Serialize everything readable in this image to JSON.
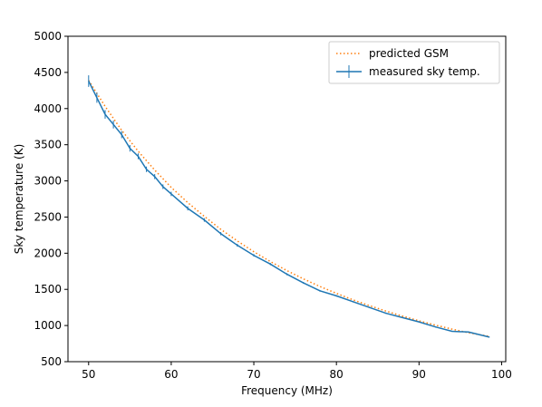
{
  "chart_data": {
    "type": "line",
    "xlabel": "Frequency (MHz)",
    "ylabel": "Sky temperature (K)",
    "xlim": [
      47.5,
      100.5
    ],
    "ylim": [
      500,
      5000
    ],
    "xticks": [
      50,
      60,
      70,
      80,
      90,
      100
    ],
    "yticks": [
      500,
      1000,
      1500,
      2000,
      2500,
      3000,
      3500,
      4000,
      4500,
      5000
    ],
    "grid": false,
    "legend_position": "top-right",
    "series": [
      {
        "name": "predicted GSM",
        "style": "dotted",
        "color": "#ff7f0e",
        "x": [
          50,
          52,
          54,
          56,
          58,
          60,
          62,
          64,
          66,
          68,
          70,
          72,
          74,
          76,
          78,
          80,
          82,
          84,
          86,
          88,
          90,
          92,
          94,
          96,
          98.5
        ],
        "y": [
          4390,
          4030,
          3700,
          3410,
          3150,
          2910,
          2700,
          2510,
          2330,
          2170,
          2020,
          1885,
          1760,
          1645,
          1540,
          1445,
          1355,
          1275,
          1200,
          1130,
          1065,
          1005,
          950,
          900,
          850
        ]
      },
      {
        "name": "measured sky temp.",
        "style": "solid",
        "color": "#1f77b4",
        "x": [
          50,
          51,
          52,
          53,
          54,
          55,
          56,
          57,
          58,
          59,
          60,
          62,
          64,
          66,
          68,
          70,
          72,
          74,
          76,
          78,
          80,
          82,
          84,
          86,
          88,
          90,
          92,
          94,
          96,
          98.5
        ],
        "y": [
          4380,
          4150,
          3920,
          3780,
          3640,
          3450,
          3340,
          3160,
          3060,
          2920,
          2820,
          2620,
          2460,
          2270,
          2110,
          1970,
          1850,
          1710,
          1590,
          1480,
          1410,
          1330,
          1250,
          1170,
          1110,
          1050,
          980,
          920,
          910,
          840
        ],
        "yerr": [
          80,
          70,
          60,
          55,
          50,
          45,
          40,
          38,
          35,
          32,
          30,
          28,
          25,
          22,
          20,
          18,
          16,
          14,
          12,
          11,
          10,
          10,
          9,
          9,
          8,
          8,
          8,
          7,
          7,
          7
        ]
      }
    ]
  }
}
